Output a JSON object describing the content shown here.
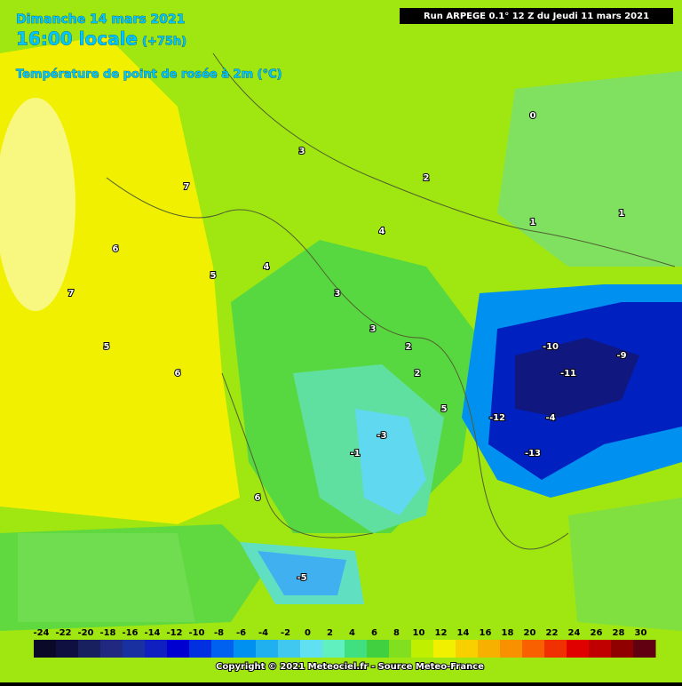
{
  "header": {
    "date": "Dimanche 14 mars 2021",
    "time": "16:00 locale",
    "lead": "(+75h)",
    "variable": "Température de point de rosée à 2m (°C)",
    "run": "Run ARPEGE 0.1° 12 Z du Jeudi 11 mars 2021"
  },
  "map_labels": [
    7,
    6,
    5,
    6,
    5,
    4,
    3,
    3,
    2,
    2,
    4,
    1,
    0,
    -10,
    -11,
    -12,
    -13,
    -9,
    -1,
    -3,
    -5,
    6,
    7,
    3,
    2,
    -4,
    5,
    1
  ],
  "legend": {
    "labels": [
      -24,
      -22,
      -20,
      -18,
      -16,
      -14,
      -12,
      -10,
      -8,
      -6,
      -4,
      -2,
      0,
      2,
      4,
      6,
      8,
      10,
      12,
      14,
      16,
      18,
      20,
      22,
      24,
      26,
      28,
      30
    ],
    "colors": [
      "#0a0a28",
      "#101040",
      "#182060",
      "#202880",
      "#1830a0",
      "#1020c0",
      "#0000d0",
      "#0030e0",
      "#0060f0",
      "#0090f0",
      "#20b0f0",
      "#40c8f0",
      "#60e0f0",
      "#60f0c0",
      "#40e080",
      "#40d040",
      "#80e020",
      "#c0f000",
      "#f0f000",
      "#f8d000",
      "#f8b000",
      "#f89000",
      "#f86000",
      "#f03000",
      "#e00000",
      "#c00000",
      "#900000",
      "#600010"
    ]
  },
  "footer": {
    "copyright": "Copyright © 2021 Meteociel.fr - Source Meteo-France"
  }
}
